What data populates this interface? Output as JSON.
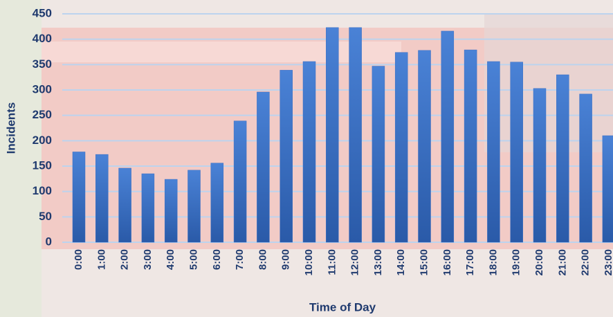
{
  "chart_data": {
    "type": "bar",
    "x_label": "Time of Day",
    "y_label": "Incidents",
    "categories": [
      "0:00",
      "1:00",
      "2:00",
      "3:00",
      "4:00",
      "5:00",
      "6:00",
      "7:00",
      "8:00",
      "9:00",
      "10:00",
      "11:00",
      "12:00",
      "13:00",
      "14:00",
      "15:00",
      "16:00",
      "17:00",
      "18:00",
      "19:00",
      "20:00",
      "21:00",
      "22:00",
      "23:00"
    ],
    "values": [
      178,
      173,
      146,
      135,
      124,
      142,
      156,
      239,
      296,
      339,
      356,
      423,
      423,
      347,
      374,
      378,
      416,
      379,
      356,
      355,
      303,
      330,
      292,
      210
    ],
    "color": "#3a6fc4",
    "ylim": [
      0,
      450
    ],
    "yticks": [
      0,
      50,
      100,
      150,
      200,
      250,
      300,
      350,
      400,
      450
    ],
    "grid": true
  }
}
